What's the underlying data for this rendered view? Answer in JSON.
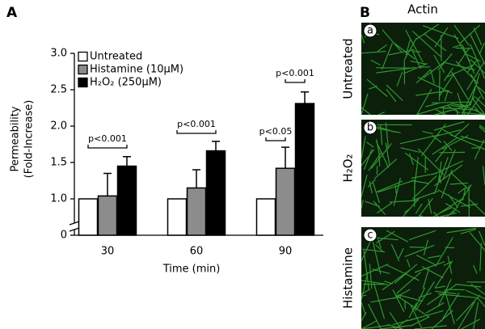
{
  "chart_data": {
    "type": "bar",
    "panel_label": "A",
    "ylabel": [
      "Permeability",
      "(Fold-Increase)"
    ],
    "xlabel": "Time (min)",
    "categories": [
      "30",
      "60",
      "90"
    ],
    "series": [
      {
        "name": "Untreated",
        "color": "#ffffff",
        "values": [
          1.0,
          1.0,
          1.0
        ],
        "errors": [
          null,
          null,
          null
        ]
      },
      {
        "name": "Histamine (10μM)",
        "color": "#8c8c8c",
        "values": [
          1.04,
          1.15,
          1.42
        ],
        "errors": [
          0.31,
          0.25,
          0.29
        ]
      },
      {
        "name": "H₂O₂ (250μM)",
        "color": "#000000",
        "values": [
          1.45,
          1.66,
          2.31
        ],
        "errors": [
          0.13,
          0.13,
          0.16
        ]
      }
    ],
    "ylim": [
      0,
      3
    ],
    "yticks": [
      0,
      {
        "value": 1,
        "label": "1.0"
      },
      1.5,
      {
        "value": 2,
        "label": "2.0"
      },
      2.5,
      {
        "value": 3,
        "label": "3.0"
      }
    ],
    "axis_break": true,
    "grid": false,
    "legend": "top-left",
    "annotations": [
      {
        "text": "p<0.001",
        "category": 0,
        "between": [
          0,
          2
        ],
        "y": 1.7
      },
      {
        "text": "p<0.001",
        "category": 1,
        "between": [
          0,
          2
        ],
        "y": 1.9
      },
      {
        "text": "p<0.05",
        "category": 2,
        "between": [
          0,
          1
        ],
        "y": 1.8
      },
      {
        "text": "p<0.001",
        "category": 2,
        "between": [
          1,
          2
        ],
        "y": 2.6
      }
    ]
  },
  "panel_b": {
    "label": "B",
    "title": "Actin",
    "images": [
      {
        "letter": "a",
        "label": "Untreated"
      },
      {
        "letter": "b",
        "label": "H₂O₂"
      },
      {
        "letter": "c",
        "label": "Histamine"
      }
    ]
  }
}
